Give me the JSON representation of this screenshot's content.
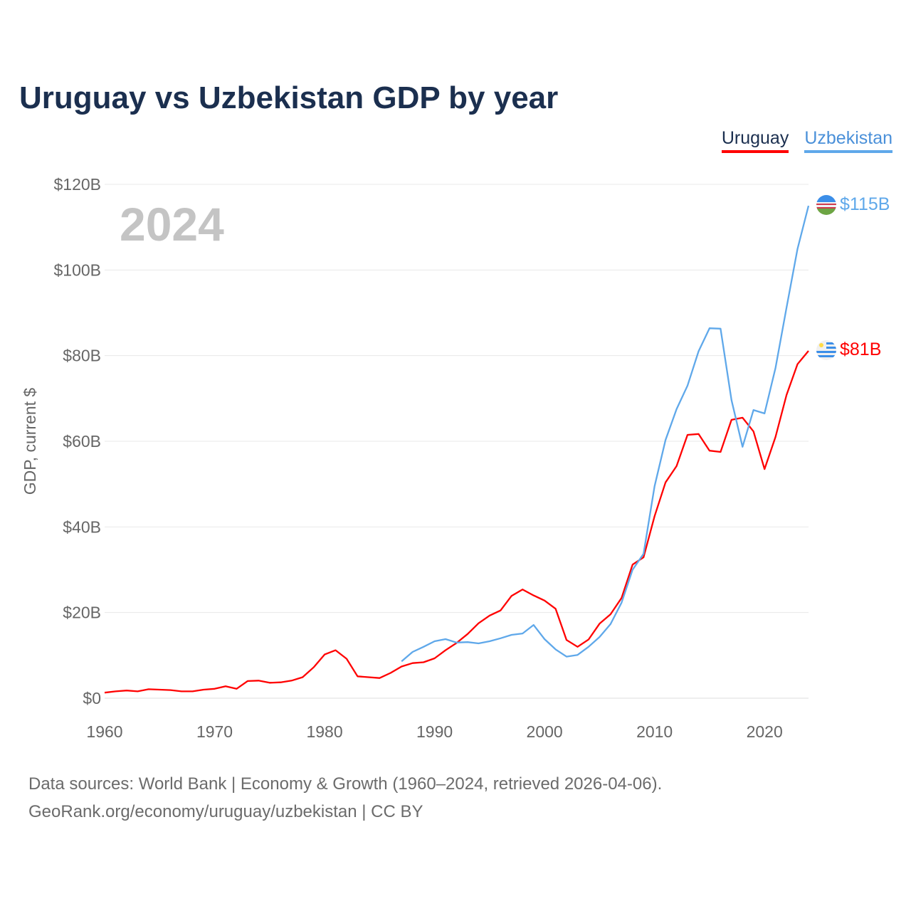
{
  "title": "Uruguay vs Uzbekistan GDP by year",
  "footer": {
    "line1": "Data sources: World Bank | Economy & Growth (1960–2024, retrieved 2026-04-06).",
    "line2": "GeoRank.org/economy/uruguay/uzbekistan | CC BY"
  },
  "chart_data": {
    "type": "line",
    "title": "Uruguay vs Uzbekistan GDP by year",
    "xlabel": "",
    "ylabel": "GDP, current $",
    "year_label": "2024",
    "xlim": [
      1960,
      2024
    ],
    "ylim": [
      0,
      120
    ],
    "x_ticks": [
      1960,
      1970,
      1980,
      1990,
      2000,
      2010,
      2020
    ],
    "y_ticks": [
      {
        "v": 0,
        "label": "$0"
      },
      {
        "v": 20,
        "label": "$20B"
      },
      {
        "v": 40,
        "label": "$40B"
      },
      {
        "v": 60,
        "label": "$60B"
      },
      {
        "v": 80,
        "label": "$80B"
      },
      {
        "v": 100,
        "label": "$100B"
      },
      {
        "v": 120,
        "label": "$120B"
      }
    ],
    "grid": true,
    "legend_position": "top-right",
    "series": [
      {
        "name": "Uruguay",
        "color": "#ff0000",
        "start": 1960,
        "end_label": "$81B",
        "flag": "uruguay-flag",
        "values": [
          1.3,
          1.6,
          1.8,
          1.6,
          2.1,
          2.0,
          1.9,
          1.6,
          1.6,
          2.0,
          2.2,
          2.8,
          2.2,
          4.0,
          4.1,
          3.6,
          3.7,
          4.1,
          4.9,
          7.2,
          10.2,
          11.2,
          9.2,
          5.1,
          4.9,
          4.7,
          5.9,
          7.4,
          8.2,
          8.4,
          9.3,
          11.2,
          12.9,
          15.0,
          17.5,
          19.3,
          20.5,
          23.9,
          25.4,
          24.0,
          22.8,
          20.9,
          13.6,
          12.0,
          13.7,
          17.4,
          19.6,
          23.4,
          31.2,
          32.9,
          42.5,
          50.4,
          54.2,
          61.5,
          61.7,
          57.8,
          57.5,
          65.0,
          65.5,
          62.3,
          53.5,
          61.0,
          70.8,
          78.0,
          81.1
        ]
      },
      {
        "name": "Uzbekistan",
        "color": "#5fa8ea",
        "start": 1987,
        "end_label": "$115B",
        "flag": "uzbekistan-flag",
        "values": [
          8.6,
          10.8,
          12.0,
          13.3,
          13.8,
          13.0,
          13.1,
          12.8,
          13.3,
          14.0,
          14.8,
          15.1,
          17.1,
          13.8,
          11.4,
          9.7,
          10.1,
          12.0,
          14.3,
          17.3,
          22.3,
          30.0,
          33.7,
          49.5,
          60.3,
          67.5,
          73.0,
          81.0,
          86.4,
          86.3,
          69.6,
          58.7,
          67.3,
          66.5,
          77.1,
          91.2,
          104.9,
          115.0
        ]
      }
    ]
  }
}
